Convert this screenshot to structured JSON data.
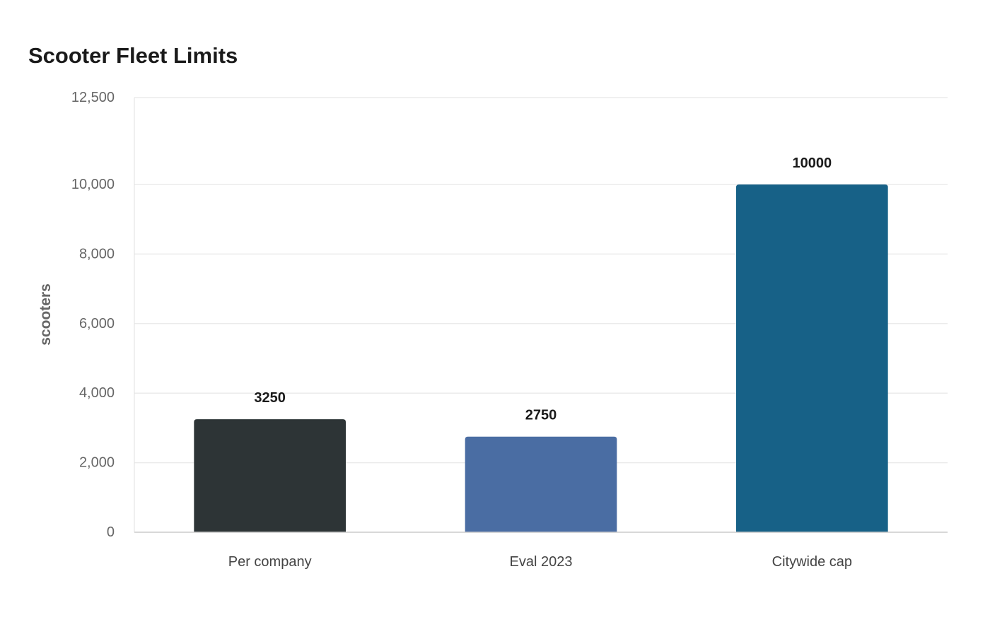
{
  "chart_data": {
    "type": "bar",
    "title": "Scooter Fleet Limits",
    "xlabel": "",
    "ylabel": "scooters",
    "categories": [
      "Per company",
      "Eval 2023",
      "Citywide cap"
    ],
    "values": [
      3250,
      2750,
      10000
    ],
    "data_labels": [
      "3250",
      "2750",
      "10000"
    ],
    "colors": [
      "#2d3436",
      "#4a6da3",
      "#176187"
    ],
    "ylim": [
      0,
      12500
    ],
    "yticks": [
      0,
      2000,
      4000,
      6000,
      8000,
      10000,
      12500
    ],
    "ytick_labels": [
      "0",
      "2,000",
      "4,000",
      "6,000",
      "8,000",
      "10,000",
      "12,500"
    ],
    "grid": true,
    "legend": "none"
  }
}
